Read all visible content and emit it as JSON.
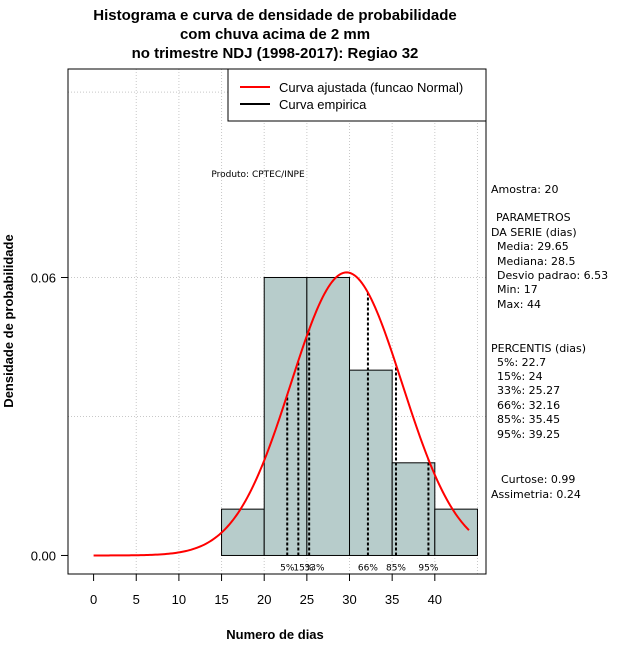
{
  "chart_data": {
    "type": "bar",
    "title_lines": [
      "Histograma e curva de densidade de probabilidade",
      "com chuva acima de 2 mm",
      "no trimestre NDJ (1998-2017): Regiao 32"
    ],
    "xlabel": "Numero de dias",
    "ylabel": "Densidade de probabilidade",
    "xlim": [
      -3,
      46
    ],
    "ylim": [
      -0.004,
      0.105
    ],
    "xticks": [
      0,
      5,
      10,
      15,
      20,
      25,
      30,
      35,
      40
    ],
    "yticks": [
      0.0,
      0.06
    ],
    "ytick_labels": [
      "0.00",
      "0.06"
    ],
    "bins": [
      {
        "x0": 15,
        "x1": 20,
        "density": 0.01
      },
      {
        "x0": 20,
        "x1": 25,
        "density": 0.06
      },
      {
        "x0": 25,
        "x1": 30,
        "density": 0.06
      },
      {
        "x0": 30,
        "x1": 35,
        "density": 0.04
      },
      {
        "x0": 35,
        "x1": 40,
        "density": 0.02
      },
      {
        "x0": 40,
        "x1": 45,
        "density": 0.01
      }
    ],
    "bar_color": "#b7cccb",
    "normal_curve": {
      "mean": 29.65,
      "sd": 6.53,
      "x_from": 0,
      "x_to": 44,
      "color": "#ff0000"
    },
    "percentile_lines": [
      {
        "label": "5%",
        "value": 22.7
      },
      {
        "label": "15%",
        "value": 24
      },
      {
        "label": "33%",
        "value": 25.27
      },
      {
        "label": "66%",
        "value": 32.16
      },
      {
        "label": "85%",
        "value": 35.45
      },
      {
        "label": "95%",
        "value": 39.25
      }
    ],
    "percentile_marker_text": [
      {
        "text": "5%",
        "x": 22.7
      },
      {
        "text": "15%",
        "x": 24.6
      },
      {
        "text": "33%",
        "x": 25.9
      },
      {
        "text": "66%",
        "x": 32.16
      },
      {
        "text": "85%",
        "x": 35.45
      },
      {
        "text": "95%",
        "x": 39.25
      }
    ],
    "vgrid": [
      5,
      10,
      15,
      20,
      25,
      30,
      35,
      40,
      45
    ],
    "hgrid": [
      0.03,
      0.06,
      0.1
    ],
    "legend": {
      "position": "top-right",
      "entries": [
        {
          "label": "Curva ajustada (funcao Normal)",
          "color": "#ff0000"
        },
        {
          "label": "Curva empirica",
          "color": "#000000"
        }
      ]
    },
    "annotation": "Produto: CPTEC/INPE"
  },
  "stats_panel": {
    "sample": "Amostra: 20",
    "params_header_1": "PARAMETROS",
    "params_header_2": "DA SERIE (dias)",
    "params": [
      "Media: 29.65",
      "Mediana: 28.5",
      "Desvio padrao: 6.53",
      "Min: 17",
      "Max: 44"
    ],
    "percentis_header": "PERCENTIS (dias)",
    "percentis": [
      "5%: 22.7",
      "15%: 24",
      "33%: 25.27",
      "66%: 32.16",
      "85%: 35.45",
      "95%: 39.25"
    ],
    "curtose": "Curtose: 0.99",
    "assimetria": "Assimetria: 0.24"
  }
}
